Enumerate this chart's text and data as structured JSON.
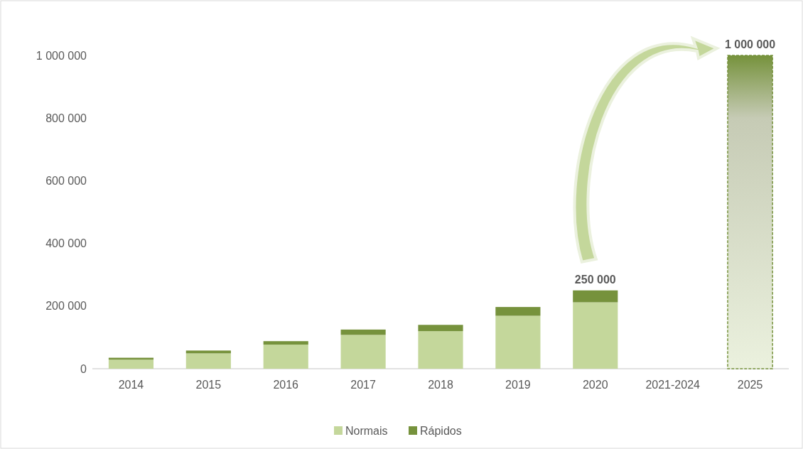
{
  "chart_data": {
    "type": "bar",
    "stacked": true,
    "categories": [
      "2014",
      "2015",
      "2016",
      "2017",
      "2018",
      "2019",
      "2020",
      "2021-2024",
      "2025"
    ],
    "series": [
      {
        "name": "Normais",
        "color": "#c4d79b",
        "values": [
          29000,
          49000,
          77000,
          108000,
          120000,
          169000,
          212000,
          null,
          null
        ]
      },
      {
        "name": "Rápidos",
        "color": "#76923c",
        "values": [
          6000,
          9000,
          11000,
          17000,
          20000,
          28000,
          38000,
          null,
          null
        ]
      },
      {
        "color": "#76923c",
        "values": [
          null,
          null,
          null,
          null,
          null,
          null,
          null,
          null,
          1000000
        ]
      }
    ],
    "ylim": [
      0,
      1000000
    ],
    "yticks": [
      {
        "value": 0,
        "label": "0"
      },
      {
        "value": 200000,
        "label": "200 000"
      },
      {
        "value": 400000,
        "label": "400 000"
      },
      {
        "value": 600000,
        "label": "600 000"
      },
      {
        "value": 800000,
        "label": "800 000"
      },
      {
        "value": 1000000,
        "label": "1 000 000"
      }
    ],
    "totals": [
      null,
      null,
      null,
      null,
      null,
      null,
      "250 000",
      null,
      "1 000 000"
    ],
    "grid": false,
    "legend": "bottom"
  }
}
